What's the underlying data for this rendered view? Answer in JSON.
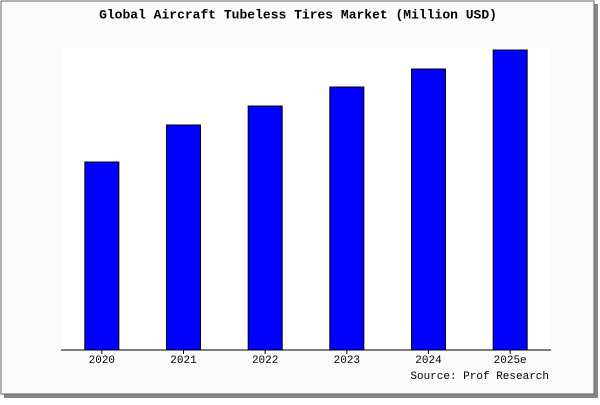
{
  "chart_data": {
    "type": "bar",
    "title": "Global Aircraft Tubeless Tires Market (Million USD)",
    "categories": [
      "2020",
      "2021",
      "2022",
      "2023",
      "2024",
      "2025e"
    ],
    "values": [
      188,
      225,
      244,
      263,
      281,
      300
    ],
    "color": "#0000ff",
    "ylim": [
      0,
      300
    ],
    "source": "Source: Prof Research"
  }
}
